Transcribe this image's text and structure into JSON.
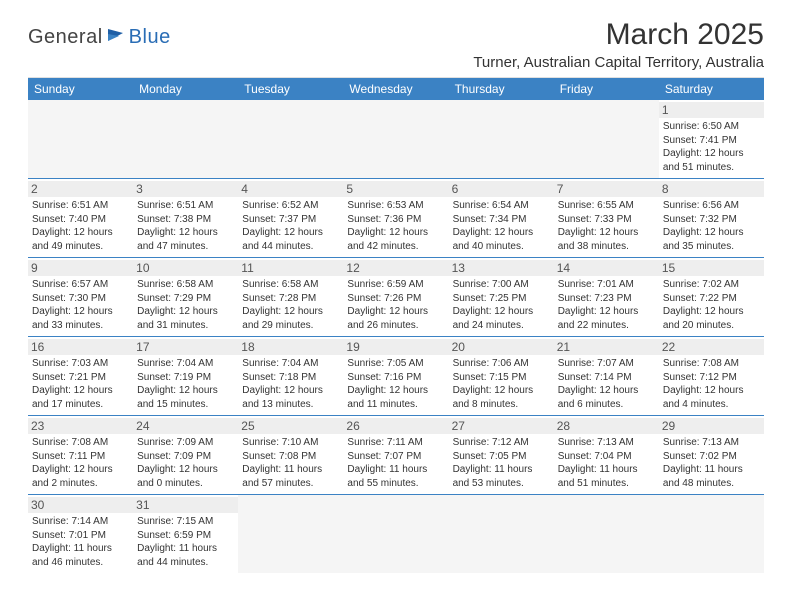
{
  "logo": {
    "text1": "General",
    "text2": "Blue"
  },
  "title": "March 2025",
  "location": "Turner, Australian Capital Territory, Australia",
  "colors": {
    "header_bg": "#3b82c4",
    "header_text": "#ffffff",
    "row_border": "#3b82c4",
    "daynum_bg": "#eeeeee",
    "logo_blue": "#2a6db5"
  },
  "typography": {
    "title_fontsize_pt": 22,
    "location_fontsize_pt": 11,
    "header_fontsize_pt": 9,
    "daynum_fontsize_pt": 9,
    "body_fontsize_pt": 7.5
  },
  "weekdays": [
    "Sunday",
    "Monday",
    "Tuesday",
    "Wednesday",
    "Thursday",
    "Friday",
    "Saturday"
  ],
  "weeks": [
    [
      null,
      null,
      null,
      null,
      null,
      null,
      {
        "n": "1",
        "sunrise": "6:50 AM",
        "sunset": "7:41 PM",
        "daylight": "12 hours and 51 minutes."
      }
    ],
    [
      {
        "n": "2",
        "sunrise": "6:51 AM",
        "sunset": "7:40 PM",
        "daylight": "12 hours and 49 minutes."
      },
      {
        "n": "3",
        "sunrise": "6:51 AM",
        "sunset": "7:38 PM",
        "daylight": "12 hours and 47 minutes."
      },
      {
        "n": "4",
        "sunrise": "6:52 AM",
        "sunset": "7:37 PM",
        "daylight": "12 hours and 44 minutes."
      },
      {
        "n": "5",
        "sunrise": "6:53 AM",
        "sunset": "7:36 PM",
        "daylight": "12 hours and 42 minutes."
      },
      {
        "n": "6",
        "sunrise": "6:54 AM",
        "sunset": "7:34 PM",
        "daylight": "12 hours and 40 minutes."
      },
      {
        "n": "7",
        "sunrise": "6:55 AM",
        "sunset": "7:33 PM",
        "daylight": "12 hours and 38 minutes."
      },
      {
        "n": "8",
        "sunrise": "6:56 AM",
        "sunset": "7:32 PM",
        "daylight": "12 hours and 35 minutes."
      }
    ],
    [
      {
        "n": "9",
        "sunrise": "6:57 AM",
        "sunset": "7:30 PM",
        "daylight": "12 hours and 33 minutes."
      },
      {
        "n": "10",
        "sunrise": "6:58 AM",
        "sunset": "7:29 PM",
        "daylight": "12 hours and 31 minutes."
      },
      {
        "n": "11",
        "sunrise": "6:58 AM",
        "sunset": "7:28 PM",
        "daylight": "12 hours and 29 minutes."
      },
      {
        "n": "12",
        "sunrise": "6:59 AM",
        "sunset": "7:26 PM",
        "daylight": "12 hours and 26 minutes."
      },
      {
        "n": "13",
        "sunrise": "7:00 AM",
        "sunset": "7:25 PM",
        "daylight": "12 hours and 24 minutes."
      },
      {
        "n": "14",
        "sunrise": "7:01 AM",
        "sunset": "7:23 PM",
        "daylight": "12 hours and 22 minutes."
      },
      {
        "n": "15",
        "sunrise": "7:02 AM",
        "sunset": "7:22 PM",
        "daylight": "12 hours and 20 minutes."
      }
    ],
    [
      {
        "n": "16",
        "sunrise": "7:03 AM",
        "sunset": "7:21 PM",
        "daylight": "12 hours and 17 minutes."
      },
      {
        "n": "17",
        "sunrise": "7:04 AM",
        "sunset": "7:19 PM",
        "daylight": "12 hours and 15 minutes."
      },
      {
        "n": "18",
        "sunrise": "7:04 AM",
        "sunset": "7:18 PM",
        "daylight": "12 hours and 13 minutes."
      },
      {
        "n": "19",
        "sunrise": "7:05 AM",
        "sunset": "7:16 PM",
        "daylight": "12 hours and 11 minutes."
      },
      {
        "n": "20",
        "sunrise": "7:06 AM",
        "sunset": "7:15 PM",
        "daylight": "12 hours and 8 minutes."
      },
      {
        "n": "21",
        "sunrise": "7:07 AM",
        "sunset": "7:14 PM",
        "daylight": "12 hours and 6 minutes."
      },
      {
        "n": "22",
        "sunrise": "7:08 AM",
        "sunset": "7:12 PM",
        "daylight": "12 hours and 4 minutes."
      }
    ],
    [
      {
        "n": "23",
        "sunrise": "7:08 AM",
        "sunset": "7:11 PM",
        "daylight": "12 hours and 2 minutes."
      },
      {
        "n": "24",
        "sunrise": "7:09 AM",
        "sunset": "7:09 PM",
        "daylight": "12 hours and 0 minutes."
      },
      {
        "n": "25",
        "sunrise": "7:10 AM",
        "sunset": "7:08 PM",
        "daylight": "11 hours and 57 minutes."
      },
      {
        "n": "26",
        "sunrise": "7:11 AM",
        "sunset": "7:07 PM",
        "daylight": "11 hours and 55 minutes."
      },
      {
        "n": "27",
        "sunrise": "7:12 AM",
        "sunset": "7:05 PM",
        "daylight": "11 hours and 53 minutes."
      },
      {
        "n": "28",
        "sunrise": "7:13 AM",
        "sunset": "7:04 PM",
        "daylight": "11 hours and 51 minutes."
      },
      {
        "n": "29",
        "sunrise": "7:13 AM",
        "sunset": "7:02 PM",
        "daylight": "11 hours and 48 minutes."
      }
    ],
    [
      {
        "n": "30",
        "sunrise": "7:14 AM",
        "sunset": "7:01 PM",
        "daylight": "11 hours and 46 minutes."
      },
      {
        "n": "31",
        "sunrise": "7:15 AM",
        "sunset": "6:59 PM",
        "daylight": "11 hours and 44 minutes."
      },
      null,
      null,
      null,
      null,
      null
    ]
  ],
  "labels": {
    "sunrise": "Sunrise:",
    "sunset": "Sunset:",
    "daylight": "Daylight:"
  }
}
